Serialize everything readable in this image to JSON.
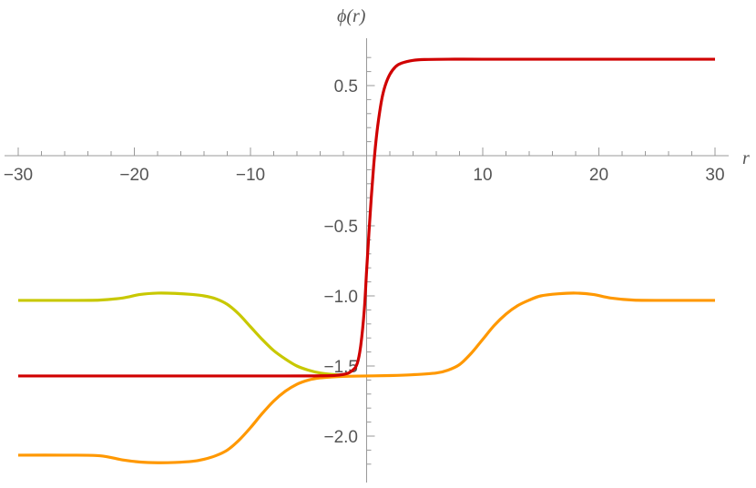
{
  "chart_data": {
    "type": "line",
    "title": "",
    "xlabel": "r",
    "ylabel": "ϕ(r)",
    "xlim": [
      -30,
      30
    ],
    "ylim": [
      -2.3,
      0.8
    ],
    "grid": false,
    "legend": null,
    "x_ticks": [
      -30,
      -20,
      -10,
      10,
      20,
      30
    ],
    "x_tick_labels": [
      "−30",
      "−20",
      "−10",
      "10",
      "20",
      "30"
    ],
    "y_ticks": [
      0.5,
      -0.5,
      -1.0,
      -1.5,
      -2.0
    ],
    "y_tick_labels": [
      "0.5",
      "−0.5",
      "−1.0",
      "−1.5",
      "−2.0"
    ],
    "series": [
      {
        "name": "yellow",
        "color": "#C8C800",
        "x": [
          -30,
          -26,
          -23,
          -21,
          -19.5,
          -18,
          -16.5,
          -15,
          -14,
          -13,
          -12,
          -11,
          -10,
          -9,
          -8,
          -7,
          -6,
          -5,
          -4,
          -3,
          -2
        ],
        "y": [
          -1.032,
          -1.032,
          -1.03,
          -1.015,
          -0.99,
          -0.98,
          -0.982,
          -0.99,
          -1.0,
          -1.02,
          -1.06,
          -1.13,
          -1.22,
          -1.31,
          -1.39,
          -1.45,
          -1.5,
          -1.53,
          -1.55,
          -1.56,
          -1.565
        ]
      },
      {
        "name": "orange",
        "color": "#FF9800",
        "x": [
          -30,
          -26,
          -23,
          -21,
          -19.5,
          -18,
          -16.5,
          -15,
          -14,
          -13,
          -12,
          -11,
          -10,
          -9,
          -8,
          -7,
          -6,
          -5,
          -4,
          -3,
          -2,
          0,
          2,
          4,
          6,
          7,
          8,
          9,
          10,
          11,
          12,
          13,
          14,
          15,
          16.5,
          18,
          19.5,
          21,
          23,
          26,
          30
        ],
        "y": [
          -2.136,
          -2.136,
          -2.14,
          -2.17,
          -2.185,
          -2.19,
          -2.188,
          -2.18,
          -2.165,
          -2.14,
          -2.1,
          -2.03,
          -1.94,
          -1.84,
          -1.75,
          -1.68,
          -1.63,
          -1.6,
          -1.585,
          -1.578,
          -1.574,
          -1.571,
          -1.568,
          -1.562,
          -1.55,
          -1.53,
          -1.49,
          -1.41,
          -1.31,
          -1.21,
          -1.13,
          -1.07,
          -1.03,
          -1.0,
          -0.985,
          -0.98,
          -0.99,
          -1.015,
          -1.03,
          -1.032,
          -1.032
        ]
      },
      {
        "name": "red",
        "color": "#D00000",
        "x": [
          -30,
          -20,
          -10,
          -4,
          -2,
          -1.2,
          -0.8,
          -0.5,
          -0.2,
          0,
          0.2,
          0.4,
          0.6,
          0.8,
          1.0,
          1.3,
          1.6,
          2.0,
          2.5,
          3.0,
          4.0,
          5.0,
          7.0,
          10,
          20,
          30
        ],
        "y": [
          -1.571,
          -1.571,
          -1.571,
          -1.57,
          -1.56,
          -1.53,
          -1.48,
          -1.35,
          -1.1,
          -0.82,
          -0.55,
          -0.3,
          -0.08,
          0.1,
          0.24,
          0.4,
          0.5,
          0.58,
          0.635,
          0.66,
          0.68,
          0.686,
          0.688,
          0.688,
          0.688,
          0.688
        ]
      }
    ]
  }
}
